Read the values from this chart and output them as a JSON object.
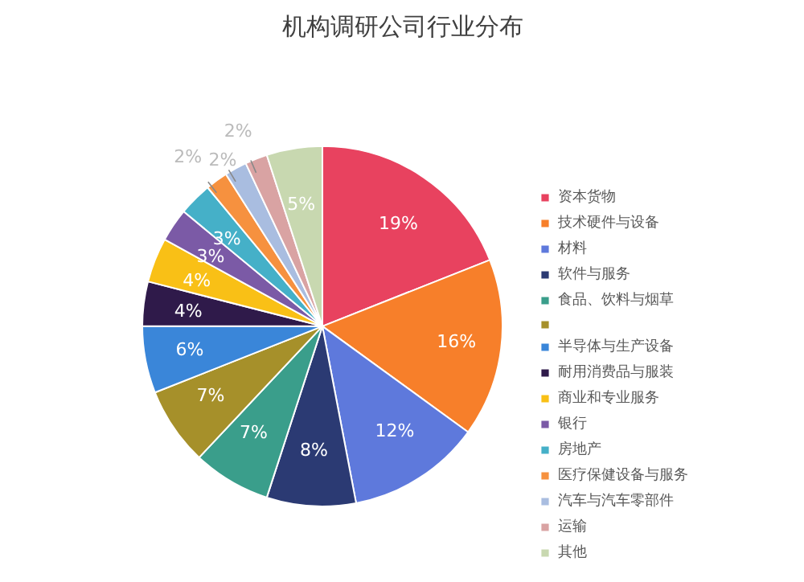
{
  "chart_data": {
    "type": "pie",
    "title": "机构调研公司行业分布",
    "categories": [
      "资本货物",
      "技术硬件与设备",
      "材料",
      "软件与服务",
      "食品、饮料与烟草",
      null,
      "半导体与生产设备",
      "耐用消费品与服装",
      "商业和专业服务",
      "银行",
      "房地产",
      "医疗保健设备与服务",
      "汽车与汽车零部件",
      "运输",
      "其他"
    ],
    "values": [
      19,
      16,
      12,
      8,
      7,
      7,
      6,
      4,
      4,
      3,
      3,
      2,
      2,
      2,
      5
    ],
    "colors": [
      "#e8425f",
      "#f77f2a",
      "#5e79dc",
      "#2b3a73",
      "#3a9e8b",
      "#a6902a",
      "#3a86d9",
      "#2f1a4a",
      "#f9c016",
      "#7b5aa6",
      "#45b0c8",
      "#f6913f",
      "#a9bde0",
      "#d9a3a3",
      "#c8d8b0"
    ],
    "value_labels": [
      "19%",
      "16%",
      "12%",
      "8%",
      "7%",
      "7%",
      "6%",
      "4%",
      "4%",
      "3%",
      "3%",
      "2%",
      "2%",
      "2%",
      "5%"
    ],
    "legend": "right"
  }
}
